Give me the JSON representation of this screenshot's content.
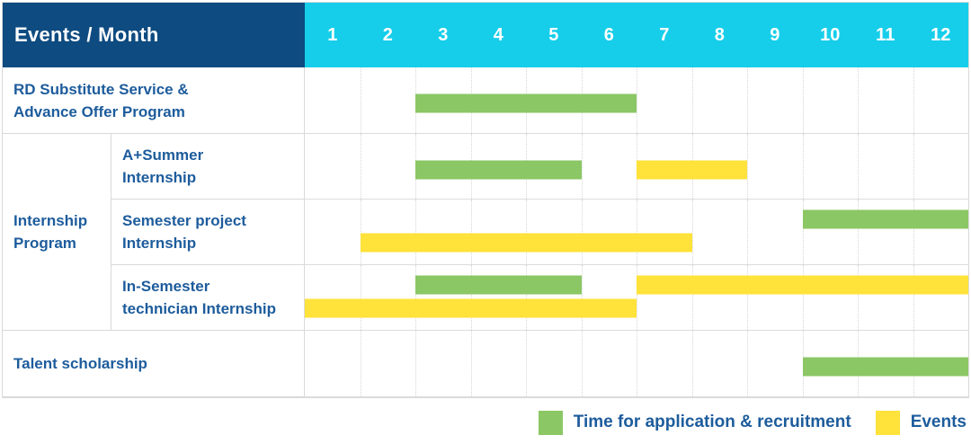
{
  "colors": {
    "navy_header": "#0E4B80",
    "cyan_header": "#16CEEA",
    "green": "#8BC764",
    "yellow": "#FFE23A",
    "label_text": "#1D5C9C",
    "grid_line": "#D9D9D9"
  },
  "header": {
    "events_month_label": "Events / Month",
    "months": [
      "1",
      "2",
      "3",
      "4",
      "5",
      "6",
      "7",
      "8",
      "9",
      "10",
      "11",
      "12"
    ]
  },
  "legend": {
    "items": [
      {
        "color_key": "green",
        "label": "Time for application & recruitment"
      },
      {
        "color_key": "yellow",
        "label": "Events"
      }
    ]
  },
  "chart_data": {
    "type": "gantt",
    "x_axis": {
      "unit": "month",
      "ticks": [
        "1",
        "2",
        "3",
        "4",
        "5",
        "6",
        "7",
        "8",
        "9",
        "10",
        "11",
        "12"
      ],
      "range": [
        1,
        12
      ]
    },
    "series": [
      {
        "name": "Time for application & recruitment",
        "color": "#8BC764"
      },
      {
        "name": "Events",
        "color": "#FFE23A"
      }
    ],
    "group_label": {
      "label": "Internship Program",
      "label_lines": [
        "Internship",
        "Program"
      ]
    },
    "rows": [
      {
        "group": null,
        "label": "RD Substitute Service & Advance Offer Program",
        "label_lines": [
          "RD Substitute Service &",
          "Advance Offer Program"
        ],
        "lanes": 1,
        "bars": [
          {
            "series": "Time for application & recruitment",
            "color_key": "green",
            "start_month": 3,
            "end_month": 6,
            "lane": 1
          }
        ]
      },
      {
        "group": "Internship Program",
        "label": "A+Summer Internship",
        "label_lines": [
          "A+Summer",
          "Internship"
        ],
        "lanes": 1,
        "bars": [
          {
            "series": "Time for application & recruitment",
            "color_key": "green",
            "start_month": 3,
            "end_month": 5,
            "lane": 1
          },
          {
            "series": "Events",
            "color_key": "yellow",
            "start_month": 7,
            "end_month": 8,
            "lane": 1
          }
        ]
      },
      {
        "group": "Internship Program",
        "label": "Semester project Internship",
        "label_lines": [
          "Semester project",
          "Internship"
        ],
        "lanes": 2,
        "bars": [
          {
            "series": "Time for application & recruitment",
            "color_key": "green",
            "start_month": 10,
            "end_month": 12,
            "lane": 1
          },
          {
            "series": "Events",
            "color_key": "yellow",
            "start_month": 2,
            "end_month": 7,
            "lane": 2
          }
        ]
      },
      {
        "group": "Internship Program",
        "label": "In-Semester technician Internship",
        "label_lines": [
          "In-Semester",
          "technician Internship"
        ],
        "lanes": 2,
        "bars": [
          {
            "series": "Time for application & recruitment",
            "color_key": "green",
            "start_month": 3,
            "end_month": 5,
            "lane": 1
          },
          {
            "series": "Events",
            "color_key": "yellow",
            "start_month": 7,
            "end_month": 12,
            "lane": 1
          },
          {
            "series": "Events",
            "color_key": "yellow",
            "start_month": 1,
            "end_month": 6,
            "lane": 2
          }
        ]
      },
      {
        "group": null,
        "label": "Talent scholarship",
        "label_lines": [
          "Talent scholarship"
        ],
        "lanes": 1,
        "bars": [
          {
            "series": "Time for application & recruitment",
            "color_key": "green",
            "start_month": 10,
            "end_month": 12,
            "lane": 1
          }
        ]
      }
    ]
  }
}
